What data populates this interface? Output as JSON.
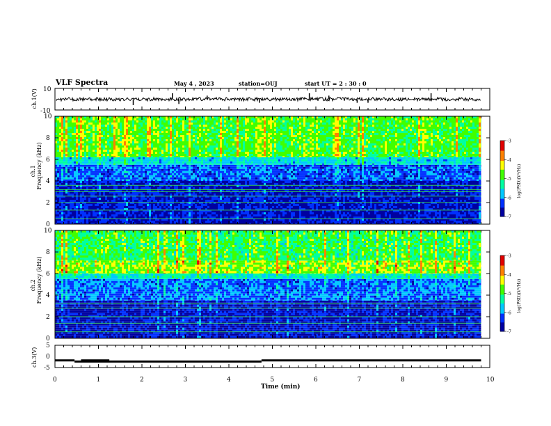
{
  "header": {
    "title": "VLF Spectra",
    "date": "May 4 , 2023",
    "station": "station=OUJ",
    "start": "start UT = 2 : 30 : 0"
  },
  "chart_data": [
    {
      "type": "line",
      "panel": "ch1-waveform",
      "ylabel": "ch.1(V)",
      "ylim": [
        -10,
        10
      ],
      "yticks": [
        "10",
        "-10"
      ],
      "baseline": 0,
      "x": [
        0,
        1.8,
        2.7,
        2.85,
        3.5,
        4.7,
        5.85,
        6.3,
        6.95,
        7.2,
        8.65
      ],
      "spikes": [
        0,
        -2.5,
        2.5,
        -2,
        1.5,
        -1.5,
        2.5,
        1.5,
        -1.5,
        -1.5,
        2.5
      ],
      "xlim": [
        0,
        10
      ]
    },
    {
      "type": "heatmap",
      "panel": "ch1-spectrogram",
      "ylabel": "ch.1 Frequency (kHz)",
      "ylim": [
        0,
        10
      ],
      "yticks": [
        "0",
        "2",
        "4",
        "6",
        "8",
        "10"
      ],
      "xlim": [
        0,
        9.8
      ],
      "color_range": [
        -7,
        -3
      ],
      "colorbar_ticks": [
        "-3",
        "-4",
        "-5",
        "-6",
        "-7"
      ],
      "colorbar_label": "log(PSD)(V²/Hz)",
      "bands_khz": [
        {
          "from": 0,
          "to": 4,
          "level": -6.6
        },
        {
          "from": 4,
          "to": 5.5,
          "level": -6.2
        },
        {
          "from": 5.5,
          "to": 6.2,
          "level": -5.6
        },
        {
          "from": 6.2,
          "to": 10,
          "level": -4.9
        }
      ],
      "narrowband_khz": [
        0.5,
        1.3,
        2.0,
        2.6,
        3.0,
        3.2,
        3.6
      ]
    },
    {
      "type": "heatmap",
      "panel": "ch2-spectrogram",
      "ylabel": "ch.2 Frequency (kHz)",
      "ylim": [
        0,
        10
      ],
      "yticks": [
        "0",
        "2",
        "4",
        "6",
        "8",
        "10"
      ],
      "xlim": [
        0,
        9.8
      ],
      "color_range": [
        -7,
        -3
      ],
      "colorbar_ticks": [
        "-3",
        "-4",
        "-5",
        "-6",
        "-7"
      ],
      "colorbar_label": "log(PSD)(V²/Hz)",
      "bands_khz": [
        {
          "from": 0,
          "to": 3.5,
          "level": -6.6
        },
        {
          "from": 3.5,
          "to": 5.5,
          "level": -6.1
        },
        {
          "from": 5.5,
          "to": 6.0,
          "level": -5.5
        },
        {
          "from": 6.0,
          "to": 7.2,
          "level": -4.7
        },
        {
          "from": 7.2,
          "to": 10,
          "level": -5.1
        }
      ],
      "narrowband_khz": [
        0.6,
        1.4,
        2.0,
        2.8,
        3.2
      ]
    },
    {
      "type": "line",
      "panel": "ch3",
      "ylabel": "ch.3(V)",
      "ylim": [
        -5,
        5
      ],
      "yticks": [
        "5",
        "0",
        "-5"
      ],
      "xlabel": "Time (min)",
      "xticks": [
        "0",
        "1",
        "2",
        "3",
        "4",
        "5",
        "6",
        "7",
        "8",
        "9",
        "10"
      ],
      "xlim": [
        0,
        10
      ],
      "segments": [
        {
          "x": [
            0,
            0.45
          ],
          "y": -1.8
        },
        {
          "x": [
            0.6,
            1.25
          ],
          "y": -1.8
        },
        {
          "x": [
            0.45,
            4.75
          ],
          "y": -2.3
        },
        {
          "x": [
            4.75,
            9.8
          ],
          "y": -1.8
        }
      ]
    }
  ],
  "colors": {
    "ink": "#000000",
    "colormap": [
      "#0000a0",
      "#0030ff",
      "#00c8ff",
      "#00ffa0",
      "#40ff00",
      "#ffff00",
      "#ff8000",
      "#e00000",
      "#ffffff"
    ]
  }
}
